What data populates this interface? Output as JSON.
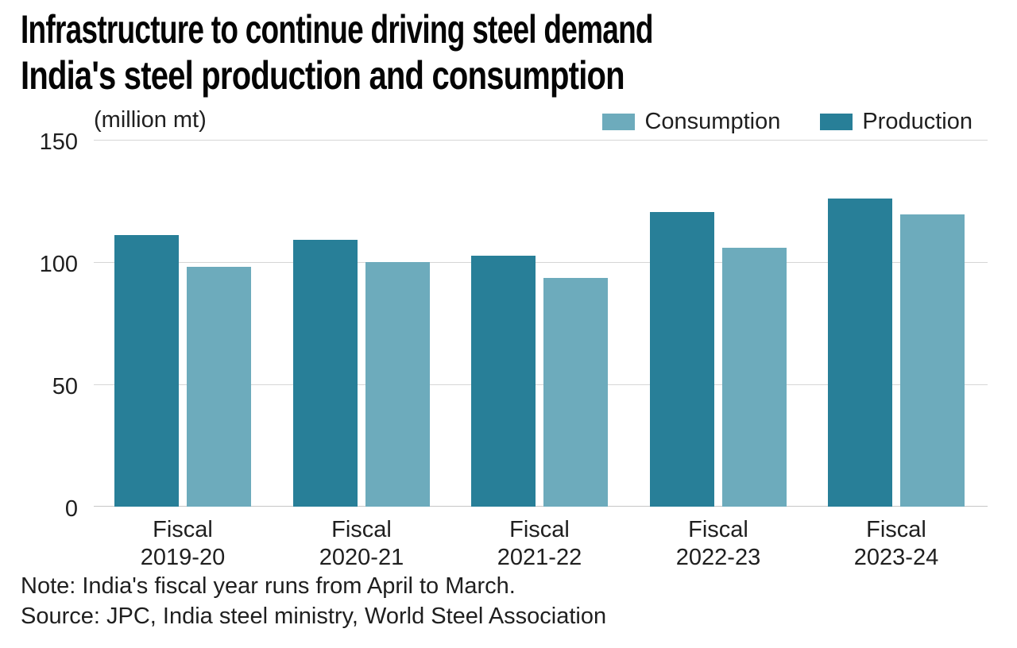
{
  "title": "Infrastructure to continue driving steel demand",
  "subtitle": "India's steel production and consumption",
  "unit_label": "(million mt)",
  "legend": [
    {
      "label": "Consumption",
      "color": "#6dabbc"
    },
    {
      "label": "Production",
      "color": "#287f98"
    }
  ],
  "note": "Note: India's fiscal year runs from April to March.",
  "source": "Source: JPC, India steel ministry, World Steel Association",
  "chart_data": {
    "type": "bar",
    "categories": [
      "Fiscal\n2019-20",
      "Fiscal\n2020-21",
      "Fiscal\n2021-22",
      "Fiscal\n2022-23",
      "Fiscal\n2023-24"
    ],
    "series": [
      {
        "name": "Production",
        "color": "#287f98",
        "values": [
          111,
          109,
          102.5,
          120.5,
          126
        ]
      },
      {
        "name": "Consumption",
        "color": "#6dabbc",
        "values": [
          98,
          100,
          93.5,
          106,
          119.5
        ]
      }
    ],
    "title": "Infrastructure to continue driving steel demand",
    "subtitle": "India's steel production and consumption",
    "ylabel": "(million mt)",
    "xlabel": "",
    "yticks": [
      0,
      50,
      100,
      150
    ],
    "ylim": [
      0,
      150
    ],
    "grid": true,
    "bar_order_in_group": [
      "Production",
      "Consumption"
    ],
    "legend_position": "top-right"
  }
}
